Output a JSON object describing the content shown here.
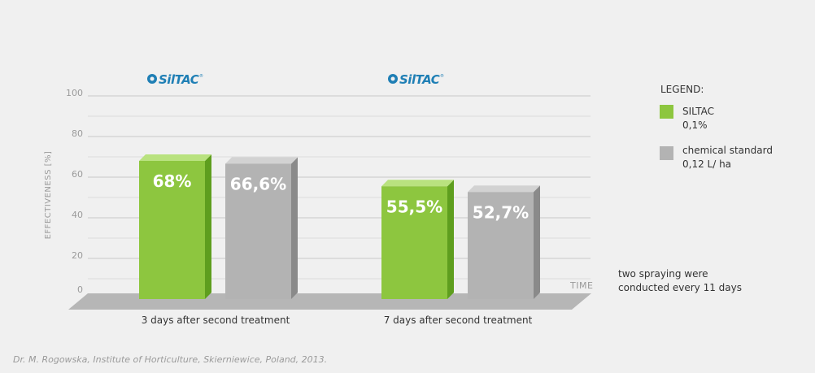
{
  "chart_data": {
    "type": "bar",
    "categories": [
      "3 days after second treatment",
      "7 days after second treatment"
    ],
    "series": [
      {
        "name": "SILTAC 0,1%",
        "values": [
          68,
          55.5
        ],
        "labels": [
          "68%",
          "55,5%"
        ],
        "color": "#8dc63f"
      },
      {
        "name": "chemical standard 0,12 L/ ha",
        "values": [
          66.6,
          52.7
        ],
        "labels": [
          "66,6%",
          "52,7%"
        ],
        "color": "#b3b3b3"
      }
    ],
    "ylabel": "EFFECTIVENESS [%]",
    "xlabel": "TIME",
    "ylim": [
      0,
      100
    ],
    "yticks": [
      0,
      20,
      40,
      60,
      80,
      100
    ],
    "grid": true,
    "legend_placement": "right"
  },
  "brand": {
    "text": "SilTAC",
    "mark": "®"
  },
  "legend": {
    "title": "LEGEND:",
    "items": [
      {
        "line1": "SILTAC",
        "line2": "0,1%",
        "color": "#8dc63f"
      },
      {
        "line1": "chemical standard",
        "line2": "0,12 L/ ha",
        "color": "#b3b3b3"
      }
    ]
  },
  "note": {
    "line1": "two spraying were",
    "line2": "conducted every 11 days"
  },
  "source": "Dr. M. Rogowska, Institute of Horticulture, Skierniewice, Poland, 2013."
}
